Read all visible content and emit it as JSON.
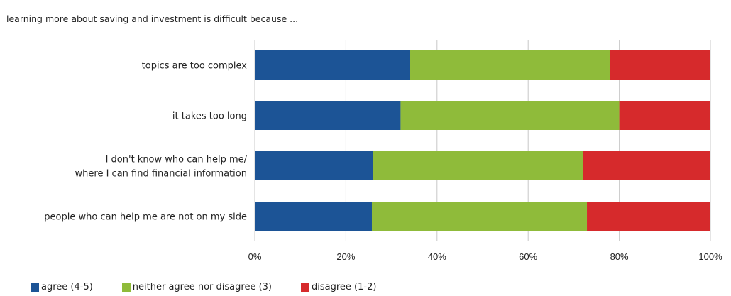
{
  "chart_data": {
    "type": "bar",
    "orientation": "horizontal",
    "stacked": true,
    "title": "learning more about saving and investment is difficult because ...",
    "categories": [
      [
        "topics are too complex"
      ],
      [
        "it takes too long"
      ],
      [
        "I don't know who can help me/",
        "where I can find financial information"
      ],
      [
        "people who can help me are not on my side"
      ]
    ],
    "series": [
      {
        "name": "agree (4-5)",
        "color": "#1c5496",
        "values": [
          34,
          32,
          26,
          25.7
        ]
      },
      {
        "name": "neither agree nor disagree (3)",
        "color": "#8fbb3a",
        "values": [
          44,
          48,
          46,
          47.2
        ]
      },
      {
        "name": "disagree (1-2)",
        "color": "#d62a2c",
        "values": [
          22,
          20,
          28,
          27.1
        ]
      }
    ],
    "xlim": [
      0,
      100
    ],
    "xticks": [
      "0%",
      "20%",
      "40%",
      "60%",
      "80%",
      "100%"
    ],
    "grid": true,
    "legend_position": "bottom-left"
  }
}
